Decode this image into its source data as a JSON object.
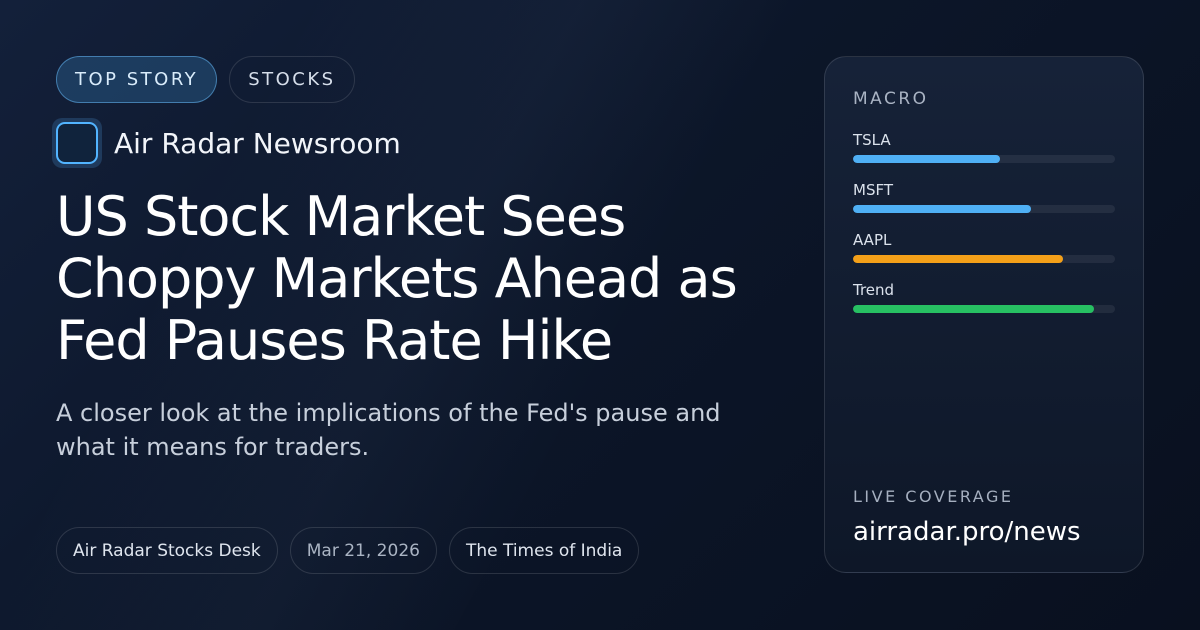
{
  "tags": [
    "TOP STORY",
    "STOCKS"
  ],
  "brand": {
    "name": "Air Radar Newsroom"
  },
  "headline": "US Stock Market Sees Choppy Markets Ahead as Fed Pauses Rate Hike",
  "subtitle": "A closer look at the implications of the Fed's pause and what it means for traders.",
  "meta": {
    "desk": "Air Radar Stocks Desk",
    "date": "Mar 21, 2026",
    "source": "The Times of India"
  },
  "panel": {
    "label": "MACRO",
    "bars": [
      {
        "name": "TSLA",
        "level": 0.56,
        "color": "#4fb0f5"
      },
      {
        "name": "MSFT",
        "level": 0.68,
        "color": "#4fb0f5"
      },
      {
        "name": "AAPL",
        "level": 0.8,
        "color": "#f4a019"
      },
      {
        "name": "Trend",
        "level": 0.92,
        "color": "#27c062"
      }
    ],
    "live_label": "LIVE COVERAGE",
    "url": "airradar.pro/news"
  }
}
